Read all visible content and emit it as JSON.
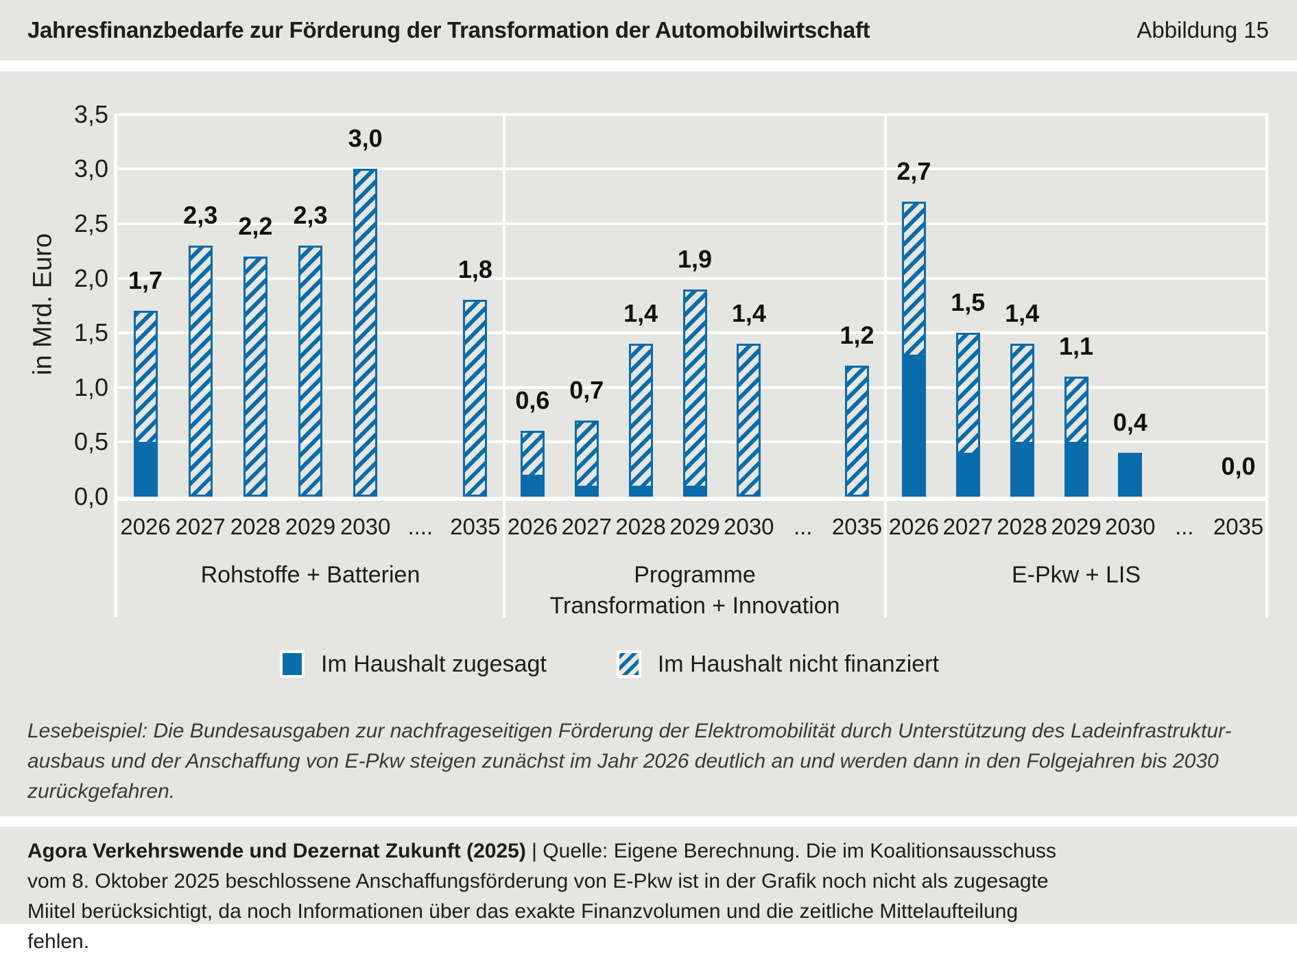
{
  "header": {
    "title": "Jahresfinanzbedarfe zur Förderung der Transformation der Automobilwirtschaft",
    "figure_label": "Abbildung 15"
  },
  "colors": {
    "blue": "#0a6cab",
    "band_background": "#e5e5e1",
    "gridline": "#ffffff",
    "text": "#1d1d1b"
  },
  "legend": [
    {
      "type": "solid",
      "label": "Im Haushalt zugesagt"
    },
    {
      "type": "hatched",
      "label": "Im Haushalt nicht finanziert"
    }
  ],
  "lesebeispiel": {
    "lines": [
      "Lesebeispiel: Die Bundesausgaben zur nachfrageseitigen Förderung der Elektromobilität durch Unterstützung des Ladeinfrastruktur-",
      "ausbaus und der Anschaffung von E-Pkw steigen zunächst im Jahr 2026 deutlich an und werden dann in den Folgejahren bis 2030",
      "zurückgefahren."
    ]
  },
  "footer": {
    "bold": "Agora Verkehrswende und Dezernat Zukunft (2025)",
    "rest": " | Quelle: Eigene Berechnung. Die im Koalitionsausschuss vom 8. Oktober 2025 beschlossene Anschaffungsförderung von E-Pkw ist in der Grafik noch nicht als zugesagte Miitel berücksichtigt, da noch Informationen über das exakte Finanzvolumen und die zeitliche Mittelaufteilung fehlen."
  },
  "chart_data": {
    "type": "bar",
    "stacked": true,
    "title": "Jahresfinanzbedarfe zur Förderung der Transformation der Automobilwirtschaft",
    "ylabel": "in Mrd. Euro",
    "ylim": [
      0,
      3.5
    ],
    "ytick_step": 0.5,
    "yticks": [
      {
        "value": 3.5,
        "label": "3,5"
      },
      {
        "value": 3.0,
        "label": "3,0"
      },
      {
        "value": 2.5,
        "label": "2,5"
      },
      {
        "value": 2.0,
        "label": "2,0"
      },
      {
        "value": 1.5,
        "label": "1,5"
      },
      {
        "value": 1.0,
        "label": "1,0"
      },
      {
        "value": 0.5,
        "label": "0,5"
      },
      {
        "value": 0.0,
        "label": "0,0"
      }
    ],
    "grid": true,
    "legend_position": "bottom",
    "series_names": [
      "Im Haushalt zugesagt",
      "Im Haushalt nicht finanziert"
    ],
    "groups": [
      {
        "name_lines": [
          "Rohstoffe + Batterien"
        ],
        "categories": [
          "2026",
          "2027",
          "2028",
          "2029",
          "2030",
          "....",
          "2035"
        ],
        "totals": [
          1.7,
          2.3,
          2.2,
          2.3,
          3.0,
          null,
          1.8
        ],
        "im_haushalt_zugesagt": [
          0.5,
          0,
          0,
          0,
          0,
          null,
          0
        ],
        "im_haushalt_nicht_finanziert": [
          1.2,
          2.3,
          2.2,
          2.3,
          3.0,
          null,
          1.8
        ],
        "total_labels": [
          "1,7",
          "2,3",
          "2,2",
          "2,3",
          "3,0",
          "",
          "1,8"
        ]
      },
      {
        "name_lines": [
          "Programme",
          "Transformation + Innovation"
        ],
        "categories": [
          "2026",
          "2027",
          "2028",
          "2029",
          "2030",
          "...",
          "2035"
        ],
        "totals": [
          0.6,
          0.7,
          1.4,
          1.9,
          1.4,
          null,
          1.2
        ],
        "im_haushalt_zugesagt": [
          0.2,
          0.1,
          0.1,
          0.1,
          0,
          null,
          0
        ],
        "im_haushalt_nicht_finanziert": [
          0.4,
          0.6,
          1.3,
          1.8,
          1.4,
          null,
          1.2
        ],
        "total_labels": [
          "0,6",
          "0,7",
          "1,4",
          "1,9",
          "1,4",
          "",
          "1,2"
        ]
      },
      {
        "name_lines": [
          "E-Pkw + LIS"
        ],
        "categories": [
          "2026",
          "2027",
          "2028",
          "2029",
          "2030",
          "...",
          "2035"
        ],
        "totals": [
          2.7,
          1.5,
          1.4,
          1.1,
          0.4,
          null,
          0.0
        ],
        "im_haushalt_zugesagt": [
          1.3,
          0.4,
          0.5,
          0.5,
          0.4,
          null,
          0
        ],
        "im_haushalt_nicht_finanziert": [
          1.4,
          1.1,
          0.9,
          0.6,
          0,
          null,
          0
        ],
        "total_labels": [
          "2,7",
          "1,5",
          "1,4",
          "1,1",
          "0,4",
          "",
          "0,0"
        ]
      }
    ]
  }
}
